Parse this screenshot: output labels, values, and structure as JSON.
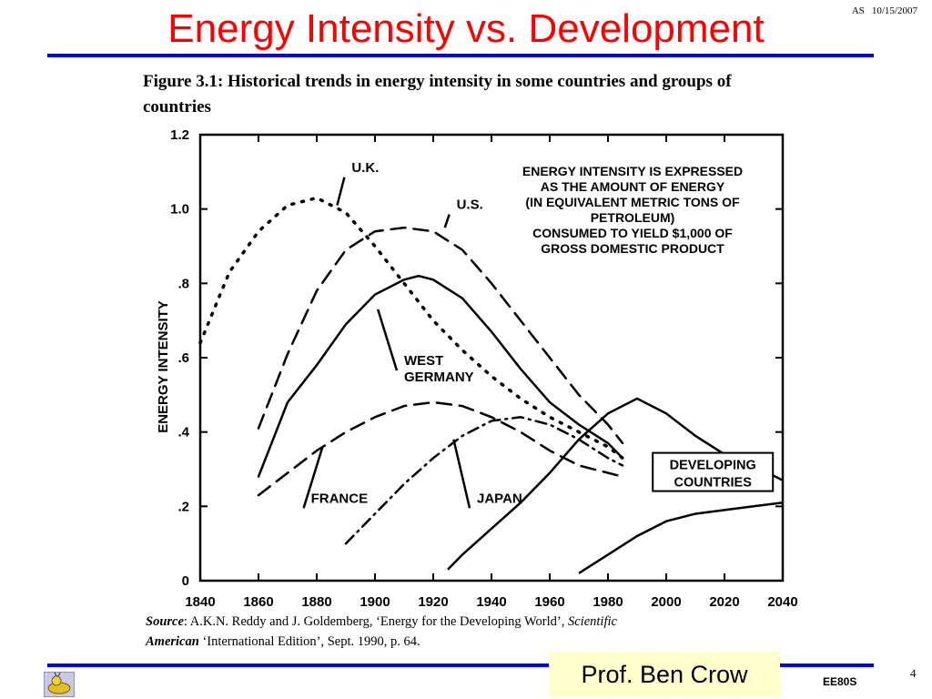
{
  "slide": {
    "title": "Energy Intensity vs. Development",
    "author_initials": "AS",
    "date": "10/15/2007",
    "page_number": "4",
    "presenter": "Prof. Ben Crow",
    "course_code": "EE80S"
  },
  "figure": {
    "caption": "Figure 3.1: Historical trends in energy intensity in some countries and groups of countries",
    "source_label": "Source",
    "source_text": ": A.K.N. Reddy and J. Goldemberg, ‘Energy for the Developing World’, ",
    "source_journal_1": "Scientific",
    "source_journal_2": "American",
    "source_tail": " ‘International Edition’, Sept. 1990, p. 64."
  },
  "chart_data": {
    "type": "line",
    "title": "",
    "xlabel": "",
    "ylabel": "ENERGY INTENSITY",
    "xlim": [
      1840,
      2040
    ],
    "ylim": [
      0,
      1.2
    ],
    "x_ticks": [
      1840,
      1860,
      1880,
      1900,
      1920,
      1940,
      1960,
      1980,
      2000,
      2020,
      2040
    ],
    "y_ticks": [
      0,
      0.2,
      0.4,
      0.6,
      0.8,
      1.0,
      1.2
    ],
    "y_tick_labels": [
      "0",
      ".2",
      ".4",
      ".6",
      ".8",
      "1.0",
      "1.2"
    ],
    "grid": false,
    "note_lines": [
      "ENERGY INTENSITY IS EXPRESSED",
      "AS THE AMOUNT OF ENERGY",
      "(IN EQUIVALENT METRIC TONS OF",
      "PETROLEUM)",
      "CONSUMED TO YIELD $1,000 OF",
      "GROSS DOMESTIC PRODUCT"
    ],
    "series": [
      {
        "name": "U.K.",
        "style": "dotted",
        "x": [
          1840,
          1850,
          1860,
          1870,
          1880,
          1890,
          1900,
          1910,
          1920,
          1930,
          1940,
          1950,
          1960,
          1970,
          1980,
          1985
        ],
        "y": [
          0.64,
          0.83,
          0.94,
          1.01,
          1.03,
          0.99,
          0.9,
          0.8,
          0.7,
          0.62,
          0.55,
          0.49,
          0.44,
          0.4,
          0.36,
          0.33
        ],
        "label_x": 1892,
        "label_y": 1.1,
        "pointer_x": 1887,
        "pointer_y": 1.01
      },
      {
        "name": "U.S.",
        "style": "dashed",
        "x": [
          1860,
          1870,
          1880,
          1890,
          1900,
          1910,
          1920,
          1930,
          1940,
          1950,
          1960,
          1970,
          1980,
          1985
        ],
        "y": [
          0.41,
          0.61,
          0.78,
          0.89,
          0.94,
          0.95,
          0.94,
          0.89,
          0.8,
          0.7,
          0.6,
          0.5,
          0.42,
          0.37
        ],
        "label_x": 1928,
        "label_y": 1.0,
        "pointer_x": 1924,
        "pointer_y": 0.95
      },
      {
        "name": "WEST GERMANY",
        "style": "solid",
        "x": [
          1860,
          1870,
          1880,
          1890,
          1900,
          1910,
          1915,
          1920,
          1930,
          1940,
          1950,
          1960,
          1970,
          1980,
          1985
        ],
        "y": [
          0.28,
          0.48,
          0.58,
          0.69,
          0.77,
          0.81,
          0.82,
          0.81,
          0.76,
          0.67,
          0.57,
          0.48,
          0.42,
          0.37,
          0.33
        ],
        "label_x": 1910,
        "label_y": 0.58,
        "pointer_x": 1901,
        "pointer_y": 0.73
      },
      {
        "name": "FRANCE",
        "style": "dashed",
        "x": [
          1860,
          1870,
          1880,
          1890,
          1900,
          1910,
          1920,
          1930,
          1940,
          1950,
          1960,
          1970,
          1980,
          1985
        ],
        "y": [
          0.23,
          0.29,
          0.35,
          0.4,
          0.44,
          0.47,
          0.48,
          0.47,
          0.44,
          0.4,
          0.35,
          0.31,
          0.29,
          0.28
        ],
        "label_x": 1878,
        "label_y": 0.21,
        "pointer_x": 1882,
        "pointer_y": 0.36
      },
      {
        "name": "JAPAN",
        "style": "dashdot",
        "x": [
          1890,
          1900,
          1910,
          1920,
          1930,
          1940,
          1950,
          1960,
          1970,
          1980,
          1985
        ],
        "y": [
          0.1,
          0.18,
          0.26,
          0.33,
          0.39,
          0.43,
          0.44,
          0.42,
          0.38,
          0.33,
          0.31
        ],
        "label_x": 1935,
        "label_y": 0.21,
        "pointer_x": 1927,
        "pointer_y": 0.38
      },
      {
        "name": "DEVELOPING COUNTRIES",
        "style": "band",
        "upper": {
          "x": [
            1925,
            1930,
            1940,
            1950,
            1960,
            1970,
            1980,
            1990,
            2000,
            2010,
            2020,
            2030,
            2040
          ],
          "y": [
            0.03,
            0.07,
            0.14,
            0.21,
            0.29,
            0.38,
            0.45,
            0.49,
            0.45,
            0.39,
            0.34,
            0.31,
            0.27
          ]
        },
        "lower": {
          "x": [
            1970,
            1980,
            1990,
            2000,
            2010,
            2020,
            2030,
            2040
          ],
          "y": [
            0.02,
            0.07,
            0.12,
            0.16,
            0.18,
            0.19,
            0.2,
            0.21
          ]
        },
        "label_x": 2016,
        "label_y": 0.29
      }
    ]
  }
}
